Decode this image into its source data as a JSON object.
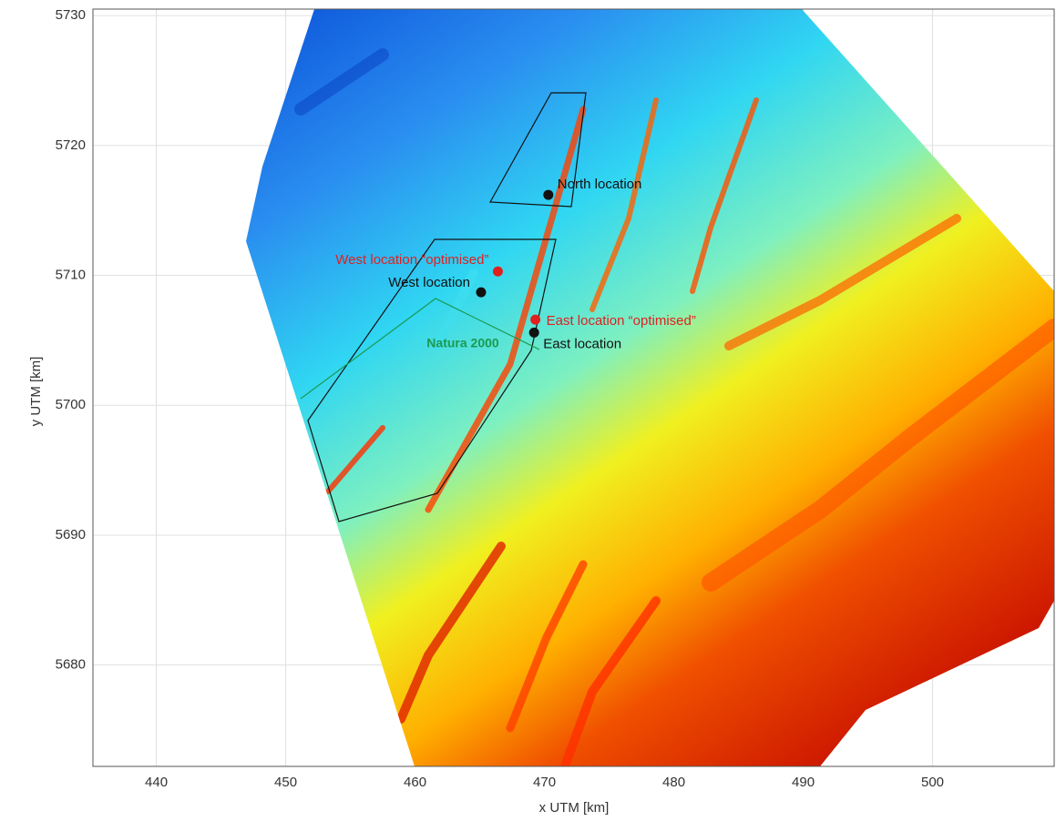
{
  "chart_data": {
    "type": "map",
    "xlabel": "x UTM [km]",
    "ylabel": "y UTM [km]",
    "xlim": [
      435.1,
      509.4
    ],
    "ylim": [
      5672.2,
      5730.5
    ],
    "xticks": [
      440,
      450,
      460,
      470,
      480,
      490,
      500
    ],
    "yticks": [
      5680,
      5690,
      5700,
      5710,
      5720,
      5730
    ],
    "grid": true,
    "points": [
      {
        "label": "North location",
        "x": 470.3,
        "y": 5716.2,
        "color": "#111111"
      },
      {
        "label": "West location “optimised”",
        "x": 466.4,
        "y": 5710.3,
        "color": "#e02020"
      },
      {
        "label": "West location",
        "x": 465.1,
        "y": 5708.7,
        "color": "#111111"
      },
      {
        "label": "East location “optimised”",
        "x": 469.3,
        "y": 5706.6,
        "color": "#e02020"
      },
      {
        "label": "East location",
        "x": 469.2,
        "y": 5705.6,
        "color": "#111111"
      }
    ],
    "area_label": "Natura 2000"
  }
}
